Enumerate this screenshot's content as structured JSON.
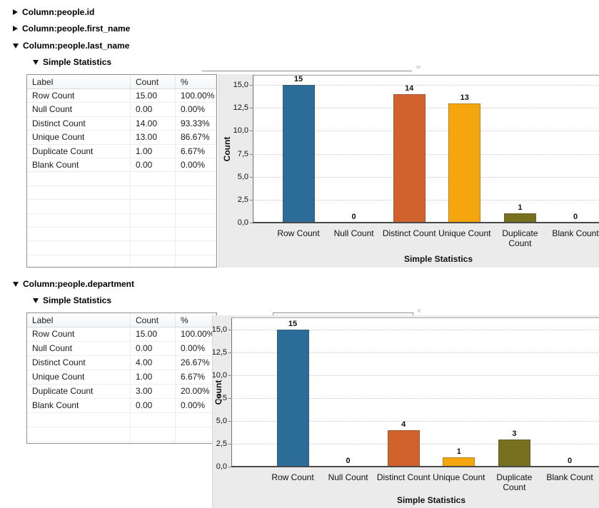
{
  "tree": {
    "items": [
      {
        "label": "Column:people.id",
        "state": "collapsed",
        "level": 1
      },
      {
        "label": "Column:people.first_name",
        "state": "collapsed",
        "level": 1
      },
      {
        "label": "Column:people.last_name",
        "state": "expanded",
        "level": 1
      },
      {
        "label": "Simple Statistics",
        "state": "expanded",
        "level": 2
      },
      {
        "label": "Column:people.department",
        "state": "expanded",
        "level": 1
      },
      {
        "label": "Simple Statistics",
        "state": "expanded",
        "level": 2
      }
    ]
  },
  "statistics_tables": [
    {
      "columns": [
        "Label",
        "Count",
        "%"
      ],
      "rows": [
        [
          "Row Count",
          "15.00",
          "100.00%"
        ],
        [
          "Null Count",
          "0.00",
          "0.00%"
        ],
        [
          "Distinct Count",
          "14.00",
          "93.33%"
        ],
        [
          "Unique Count",
          "13.00",
          "86.67%"
        ],
        [
          "Duplicate Count",
          "1.00",
          "6.67%"
        ],
        [
          "Blank Count",
          "0.00",
          "0.00%"
        ]
      ]
    },
    {
      "columns": [
        "Label",
        "Count",
        "%"
      ],
      "rows": [
        [
          "Row Count",
          "15.00",
          "100.00%"
        ],
        [
          "Null Count",
          "0.00",
          "0.00%"
        ],
        [
          "Distinct Count",
          "4.00",
          "26.67%"
        ],
        [
          "Unique Count",
          "1.00",
          "6.67%"
        ],
        [
          "Duplicate Count",
          "3.00",
          "20.00%"
        ],
        [
          "Blank Count",
          "0.00",
          "0.00%"
        ]
      ]
    }
  ],
  "chart_data": [
    {
      "type": "bar",
      "title": "",
      "categories": [
        "Row Count",
        "Null Count",
        "Distinct Count",
        "Unique Count",
        "Duplicate Count",
        "Blank Count"
      ],
      "values": [
        15,
        0,
        14,
        13,
        1,
        0
      ],
      "value_labels": [
        "15",
        "0",
        "14",
        "13",
        "1",
        "0"
      ],
      "xlabel": "Simple Statistics",
      "ylabel": "Count",
      "ylim": [
        0,
        15
      ],
      "ytick_values": [
        0,
        2.5,
        5,
        7.5,
        10,
        12.5,
        15
      ],
      "ytick_labels": [
        "0,0",
        "2,5",
        "5,0",
        "7,5",
        "10,0",
        "12,5",
        "15,0"
      ],
      "colors": [
        "#2B6C99",
        "#b0b0b0",
        "#D2622C",
        "#F5A60E",
        "#76701F",
        "#b0b0b0"
      ],
      "grid": "dotted-horizontal",
      "legend": "none",
      "panel_background": "#EBEBEB"
    },
    {
      "type": "bar",
      "title": "",
      "categories": [
        "Row Count",
        "Null Count",
        "Distinct Count",
        "Unique Count",
        "Duplicate Count",
        "Blank Count"
      ],
      "values": [
        15,
        0,
        4,
        1,
        3,
        0
      ],
      "value_labels": [
        "15",
        "0",
        "4",
        "1",
        "3",
        "0"
      ],
      "xlabel": "Simple Statistics",
      "ylabel": "Count",
      "ylim": [
        0,
        15
      ],
      "ytick_values": [
        0,
        2.5,
        5,
        7.5,
        10,
        12.5,
        15
      ],
      "ytick_labels": [
        "0,0",
        "2,5",
        "5,0",
        "7,5",
        "10,0",
        "12,5",
        "15,0"
      ],
      "colors": [
        "#2B6C99",
        "#b0b0b0",
        "#D2622C",
        "#F5A60E",
        "#76701F",
        "#b0b0b0"
      ],
      "grid": "dotted-horizontal",
      "legend": "none",
      "panel_background": "#EBEBEB"
    }
  ]
}
